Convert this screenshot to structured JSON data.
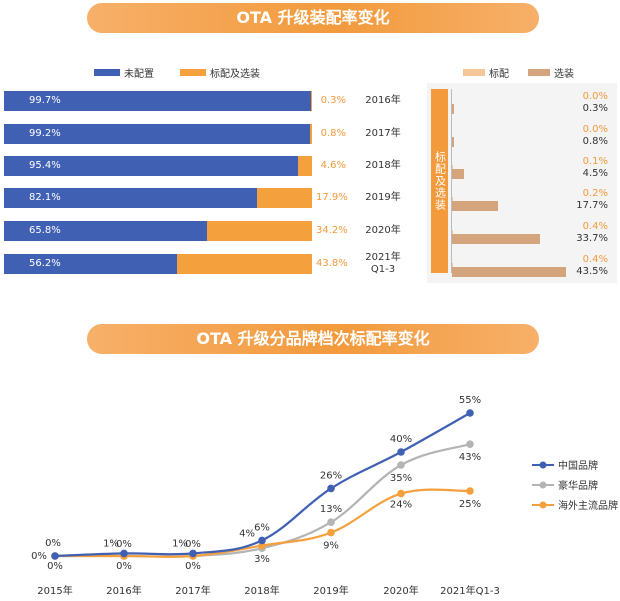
{
  "colors": {
    "blue": "#4060b4",
    "orange": "#f4a03c",
    "standard": "#f6c596",
    "optional": "#d4a57c",
    "gray": "#b4b4b4"
  },
  "section1": {
    "title": "OTA 升级装配率变化",
    "legend_left": [
      "未配置",
      "标配及选装"
    ],
    "legend_right": [
      "标配",
      "选装"
    ],
    "vertical_label": "标配及选装"
  },
  "section2": {
    "title": "OTA 升级分品牌档次标配率变化"
  },
  "chart_data": [
    {
      "type": "bar",
      "orientation": "horizontal",
      "stacked": true,
      "categories": [
        "2016年",
        "2017年",
        "2018年",
        "2019年",
        "2020年",
        "2021年 Q1-3"
      ],
      "category_lines": [
        [
          "2016年"
        ],
        [
          "2017年"
        ],
        [
          "2018年"
        ],
        [
          "2019年"
        ],
        [
          "2020年"
        ],
        [
          "2021年",
          "Q1-3"
        ]
      ],
      "series": [
        {
          "name": "未配置",
          "values": [
            99.7,
            99.2,
            95.4,
            82.1,
            65.8,
            56.2
          ],
          "labels": [
            "99.7%",
            "99.2%",
            "95.4%",
            "82.1%",
            "65.8%",
            "56.2%"
          ]
        },
        {
          "name": "标配及选装",
          "values": [
            0.3,
            0.8,
            4.6,
            17.9,
            34.2,
            43.8
          ],
          "labels": [
            "0.3%",
            "0.8%",
            "4.6%",
            "17.9%",
            "34.2%",
            "43.8%"
          ]
        }
      ],
      "xlim": [
        0,
        100
      ]
    },
    {
      "type": "bar",
      "orientation": "horizontal",
      "categories": [
        "2016年",
        "2017年",
        "2018年",
        "2019年",
        "2020年",
        "2021年 Q1-3"
      ],
      "series": [
        {
          "name": "标配",
          "values": [
            0.0,
            0.0,
            0.1,
            0.2,
            0.4,
            0.4
          ],
          "labels": [
            "0.0%",
            "0.0%",
            "0.1%",
            "0.2%",
            "0.4%",
            "0.4%"
          ]
        },
        {
          "name": "选装",
          "values": [
            0.3,
            0.8,
            4.5,
            17.7,
            33.7,
            43.5
          ],
          "labels": [
            "0.3%",
            "0.8%",
            "4.5%",
            "17.7%",
            "33.7%",
            "43.5%"
          ]
        }
      ],
      "xlim": [
        0,
        50
      ]
    },
    {
      "type": "line",
      "title": "OTA 升级分品牌档次标配率变化",
      "categories": [
        "2015年",
        "2016年",
        "2017年",
        "2018年",
        "2019年",
        "2020年",
        "2021年Q1-3"
      ],
      "series": [
        {
          "name": "中国品牌",
          "values": [
            0,
            1,
            1,
            6,
            26,
            40,
            55
          ],
          "labels": [
            "0%",
            "1%",
            "1%",
            "6%",
            "26%",
            "40%",
            "55%"
          ]
        },
        {
          "name": "豪华品牌",
          "values": [
            0,
            0,
            0,
            3,
            13,
            35,
            43
          ],
          "labels": [
            "0%",
            "0%",
            "0%",
            "3%",
            "13%",
            "35%",
            "43%"
          ]
        },
        {
          "name": "海外主流品牌",
          "values": [
            0,
            0,
            0,
            4,
            9,
            24,
            25
          ],
          "labels": [
            "0%",
            "0%",
            "0%",
            "4%",
            "9%",
            "24%",
            "25%"
          ]
        }
      ],
      "ylim": [
        0,
        60
      ],
      "grid": false,
      "legend": "right"
    }
  ]
}
